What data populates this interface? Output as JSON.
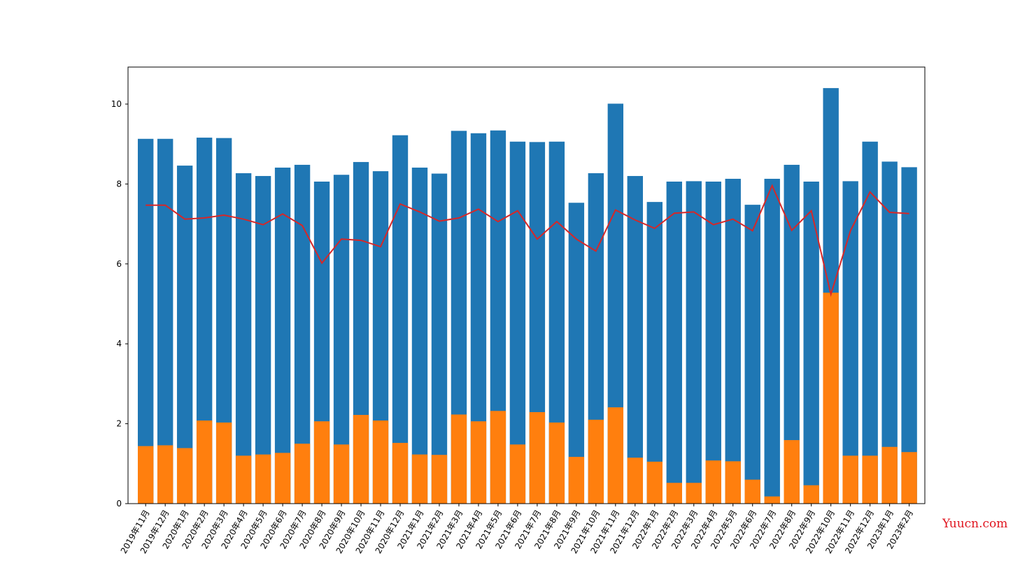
{
  "chart_data": {
    "type": "bar",
    "title": "",
    "xlabel": "",
    "ylabel": "",
    "ylim": [
      0,
      11
    ],
    "yticks": [
      0,
      2,
      4,
      6,
      8,
      10
    ],
    "grid": false,
    "categories": [
      "2019年11月",
      "2019年12月",
      "2020年1月",
      "2020年2月",
      "2020年3月",
      "2020年4月",
      "2020年5月",
      "2020年6月",
      "2020年7月",
      "2020年8月",
      "2020年9月",
      "2020年10月",
      "2020年11月",
      "2020年12月",
      "2021年1月",
      "2021年2月",
      "2021年3月",
      "2021年4月",
      "2021年5月",
      "2021年6月",
      "2021年7月",
      "2021年8月",
      "2021年9月",
      "2021年10月",
      "2021年11月",
      "2021年12月",
      "2022年1月",
      "2022年2月",
      "2022年3月",
      "2022年4月",
      "2022年5月",
      "2022年6月",
      "2022年7月",
      "2022年8月",
      "2022年9月",
      "2022年10月",
      "2022年11月",
      "2022年12月",
      "2023年1月",
      "2023年2月"
    ],
    "series": [
      {
        "kind": "bar",
        "color": "#1f77b4",
        "values": [
          9.13,
          9.13,
          8.46,
          9.16,
          9.15,
          8.27,
          8.2,
          8.41,
          8.48,
          8.06,
          8.23,
          8.55,
          8.32,
          9.22,
          8.41,
          8.26,
          9.33,
          9.27,
          9.34,
          9.06,
          9.05,
          9.06,
          7.53,
          8.27,
          10.01,
          8.2,
          7.55,
          8.06,
          8.07,
          8.06,
          8.13,
          7.48,
          8.13,
          8.48,
          8.06,
          10.4,
          8.07,
          9.06,
          8.56,
          8.42
        ]
      },
      {
        "kind": "bar",
        "color": "#ff7f0e",
        "values": [
          1.44,
          1.46,
          1.39,
          2.08,
          2.03,
          1.2,
          1.23,
          1.27,
          1.5,
          2.06,
          1.48,
          2.22,
          2.08,
          1.52,
          1.23,
          1.22,
          2.23,
          2.06,
          2.32,
          1.48,
          2.29,
          2.03,
          1.17,
          2.1,
          2.41,
          1.15,
          1.05,
          0.52,
          0.52,
          1.08,
          1.06,
          0.6,
          0.18,
          1.59,
          0.46,
          5.28,
          1.2,
          1.2,
          1.42,
          1.29
        ]
      },
      {
        "kind": "line",
        "color": "#d62728",
        "values": [
          7.47,
          7.47,
          7.12,
          7.15,
          7.22,
          7.12,
          6.98,
          7.25,
          6.96,
          6.02,
          6.62,
          6.59,
          6.43,
          7.5,
          7.3,
          7.07,
          7.15,
          7.37,
          7.06,
          7.33,
          6.62,
          7.06,
          6.62,
          6.32,
          7.35,
          7.1,
          6.89,
          7.27,
          7.3,
          6.98,
          7.12,
          6.83,
          7.96,
          6.84,
          7.33,
          5.24,
          6.83,
          7.8,
          7.29,
          7.26
        ]
      }
    ]
  },
  "watermark": "Yuucn.com"
}
